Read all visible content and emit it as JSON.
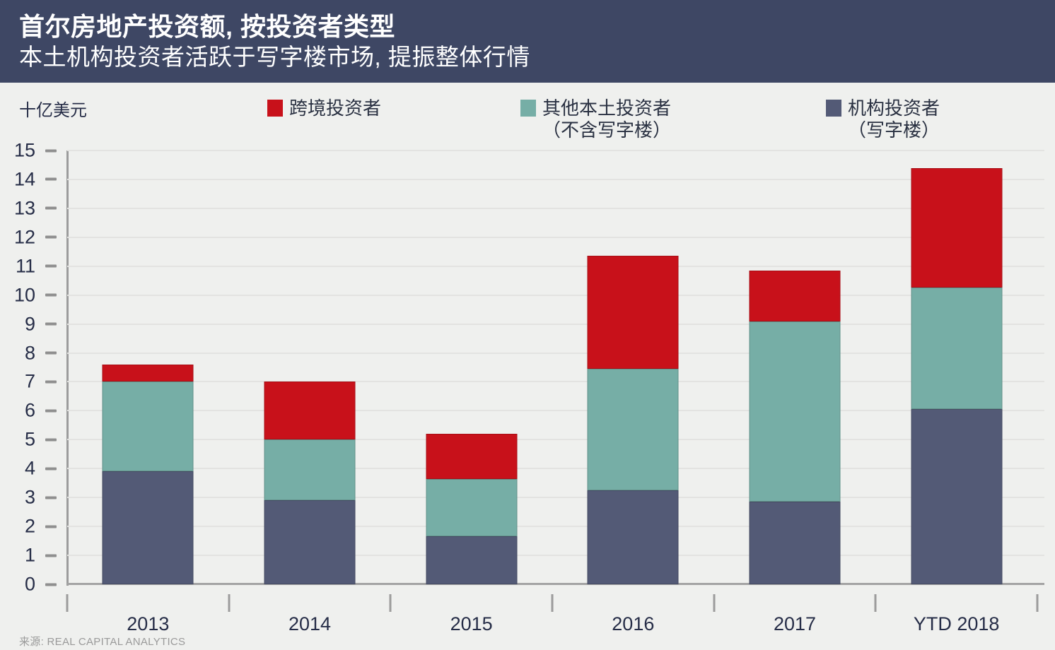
{
  "header": {
    "title": "首尔房地产投资额, 按投资者类型",
    "subtitle": "本土机构投资者活跃于写字楼市场, 提振整体行情"
  },
  "unit_label": "十亿美元",
  "source": "来源: REAL CAPITAL ANALYTICS",
  "colors": {
    "header_background": "#3e4764",
    "page_background": "#eff0ee",
    "cross_border_red": "#c8111a",
    "other_domestic_teal": "#76aea6",
    "institutional_navy": "#535a76",
    "axis_gray": "#9c9c9c",
    "gridline": "#e3e3e1",
    "text_navy": "#262d47",
    "source_gray": "#9a9a9a"
  },
  "chart_data": {
    "type": "bar",
    "stacked": true,
    "title": "首尔房地产投资额, 按投资者类型",
    "subtitle": "本土机构投资者活跃于写字楼市场, 提振整体行情",
    "ylabel": "十亿美元",
    "xlabel": "",
    "categories": [
      "2013",
      "2014",
      "2015",
      "2016",
      "2017",
      "YTD 2018"
    ],
    "series": [
      {
        "name": "机构投资者（写字楼）",
        "name_lines": [
          "机构投资者",
          "（写字楼）"
        ],
        "color": "#535a76",
        "values": [
          3.9,
          2.9,
          1.65,
          3.25,
          2.85,
          6.05
        ]
      },
      {
        "name": "其他本土投资者（不含写字楼）",
        "name_lines": [
          "其他本土投资者",
          "（不含写字楼）"
        ],
        "color": "#76aea6",
        "values": [
          3.1,
          2.1,
          2.0,
          4.2,
          6.25,
          4.2
        ]
      },
      {
        "name": "跨境投资者",
        "name_lines": [
          "跨境投资者"
        ],
        "color": "#c8111a",
        "values": [
          0.6,
          2.0,
          1.55,
          3.9,
          1.75,
          4.15
        ]
      }
    ],
    "stack_totals": [
      7.6,
      7.0,
      5.2,
      11.35,
      10.85,
      14.4
    ],
    "ylim": [
      0,
      15
    ],
    "ytick_step": 1,
    "grid": true,
    "legend_position": "top",
    "legend_display_order": "top-of-stack-first"
  }
}
